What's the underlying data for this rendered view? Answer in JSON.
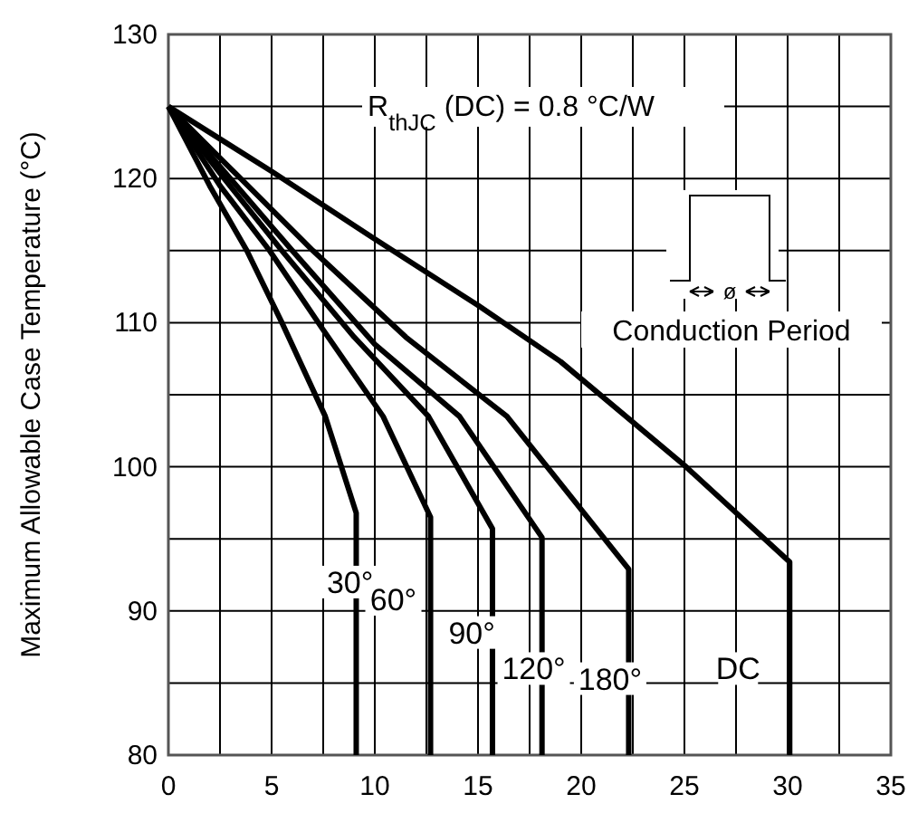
{
  "chart_data": {
    "type": "line",
    "ylabel": "Maximum Allowable Case Temperature (°C)",
    "xlim": [
      0,
      35
    ],
    "ylim": [
      80,
      130
    ],
    "xticks": [
      0,
      {
        "value": 2.5,
        "label": null
      },
      5,
      {
        "value": 7.5,
        "label": null
      },
      10,
      {
        "value": 12.5,
        "label": null
      },
      15,
      {
        "value": 17.5,
        "label": null
      },
      20,
      {
        "value": 22.5,
        "label": null
      },
      25,
      {
        "value": 27.5,
        "label": null
      },
      30,
      {
        "value": 32.5,
        "label": null
      },
      35
    ],
    "yticks": [
      80,
      {
        "value": 85,
        "label": null
      },
      90,
      {
        "value": 95,
        "label": null
      },
      100,
      {
        "value": 105,
        "label": null
      },
      110,
      {
        "value": 115,
        "label": null
      },
      120,
      {
        "value": 125,
        "label": null
      },
      130
    ],
    "grid": true,
    "line_style": "solid",
    "marker": "none",
    "annotations": [
      "R$_{thJC}$ (DC) = 0.8 °C/W",
      "ø",
      "Conduction Period"
    ],
    "series": [
      {
        "name": "30°",
        "color": "#000000",
        "x": [
          0,
          2,
          3.8,
          5.5,
          7.6,
          9.1,
          9.1
        ],
        "values": [
          125,
          119.5,
          115,
          110,
          103.5,
          96.8,
          80
        ]
      },
      {
        "name": "60°",
        "color": "#000000",
        "x": [
          0,
          2.5,
          4.9,
          7.5,
          10.4,
          12.7,
          12.7
        ],
        "values": [
          125,
          119.5,
          115,
          109.5,
          103.5,
          96.5,
          80
        ]
      },
      {
        "name": "90°",
        "color": "#000000",
        "x": [
          0,
          2.7,
          5.5,
          9,
          12.6,
          15.7,
          15.7
        ],
        "values": [
          125,
          120,
          115,
          109,
          103.5,
          95.7,
          80
        ]
      },
      {
        "name": "120°",
        "color": "#000000",
        "x": [
          0,
          3,
          6,
          10,
          14.1,
          18.1,
          18.1
        ],
        "values": [
          125,
          120,
          115,
          108.5,
          103.5,
          95.1,
          80
        ]
      },
      {
        "name": "180°",
        "color": "#000000",
        "x": [
          0,
          3.5,
          7,
          11.5,
          16.4,
          22.3,
          22.3
        ],
        "values": [
          125,
          120,
          115,
          109,
          103.5,
          92.9,
          80
        ]
      },
      {
        "name": "DC",
        "color": "#000000",
        "x": [
          0,
          5,
          10,
          15,
          19,
          25,
          30.1,
          30.1
        ],
        "values": [
          125,
          120.5,
          115.8,
          111.2,
          107.3,
          100.1,
          93.4,
          80
        ]
      }
    ]
  }
}
